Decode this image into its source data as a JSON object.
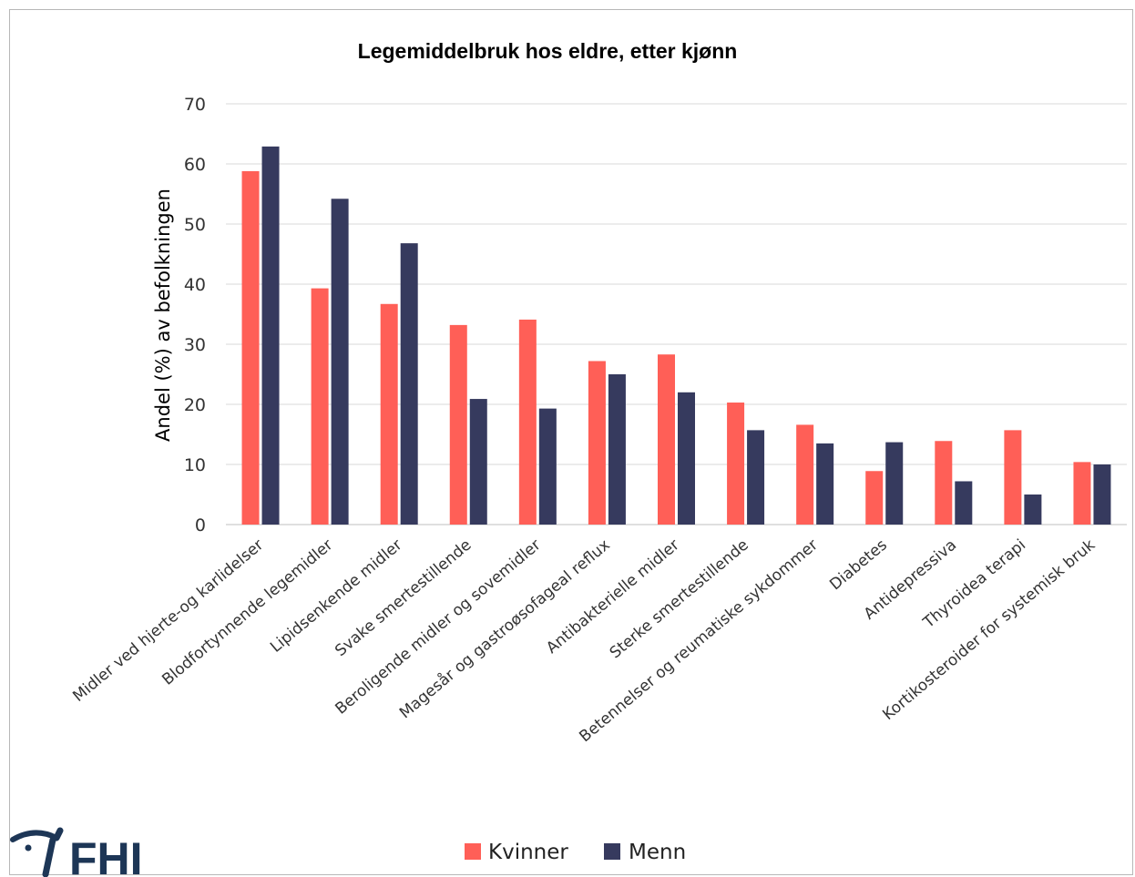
{
  "logo": {
    "text": "FHI"
  },
  "chart_data": {
    "type": "bar",
    "title": "Legemiddelbruk hos eldre, etter kjønn",
    "ylabel": "Andel (%) av befolkningen",
    "xlabel": "",
    "ylim": [
      0,
      70
    ],
    "yticks": [
      0,
      10,
      20,
      30,
      40,
      50,
      60,
      70
    ],
    "grid": true,
    "legend_position": "bottom",
    "categories": [
      "Midler ved hjerte-og karlidelser",
      "Blodfortynnende legemidler",
      "Lipidsenkende midler",
      "Svake smertestillende",
      "Beroligende midler og sovemidler",
      "Magesår og gastroøsofageal reflux",
      "Antibakterielle midler",
      "Sterke smertestillende",
      "Betennelser og reumatiske sykdommer",
      "Diabetes",
      "Antidepressiva",
      "Thyroidea terapi",
      "Kortikosteroider for systemisk bruk"
    ],
    "series": [
      {
        "name": "Kvinner",
        "color": "#ff5f57",
        "values": [
          58.8,
          39.3,
          36.7,
          33.2,
          34.1,
          27.2,
          28.3,
          20.3,
          16.6,
          8.9,
          13.9,
          15.7,
          10.4
        ]
      },
      {
        "name": "Menn",
        "color": "#363a5e",
        "values": [
          62.9,
          54.2,
          46.8,
          20.9,
          19.3,
          25.0,
          22.0,
          15.7,
          13.5,
          13.7,
          7.2,
          5.0,
          10.0
        ]
      }
    ]
  }
}
